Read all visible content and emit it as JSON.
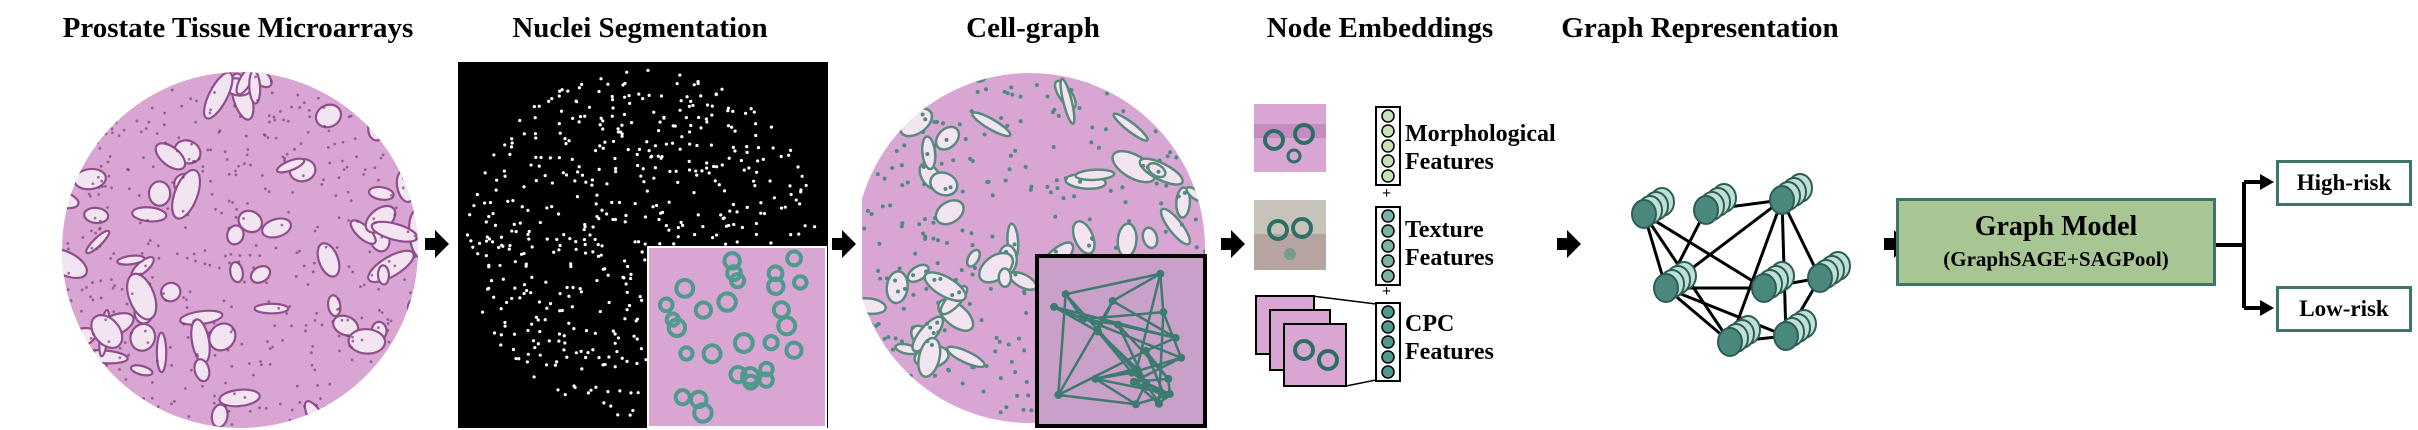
{
  "stages": {
    "tma": "Prostate Tissue Microarrays",
    "seg": "Nuclei Segmentation",
    "cellgraph": "Cell-graph",
    "embed": "Node Embeddings",
    "graphrep": "Graph Representation"
  },
  "features": {
    "morph_line1": "Morphological",
    "morph_line2": "Features",
    "texture_line1": "Texture",
    "texture_line2": "Features",
    "cpc_line1": "CPC",
    "cpc_line2": "Features",
    "plus": "+"
  },
  "model": {
    "title": "Graph Model",
    "subtitle": "(GraphSAGE+SAGPool)"
  },
  "outputs": {
    "high": "High-risk",
    "low": "Low-risk"
  },
  "colors": {
    "tissue_pink": "#d9a6d3",
    "tissue_dark": "#9c5a98",
    "node_fill": "#5a9a8e",
    "node_stroke": "#2d5d55",
    "model_fill": "#a8c594",
    "box_border": "#3f7468"
  }
}
